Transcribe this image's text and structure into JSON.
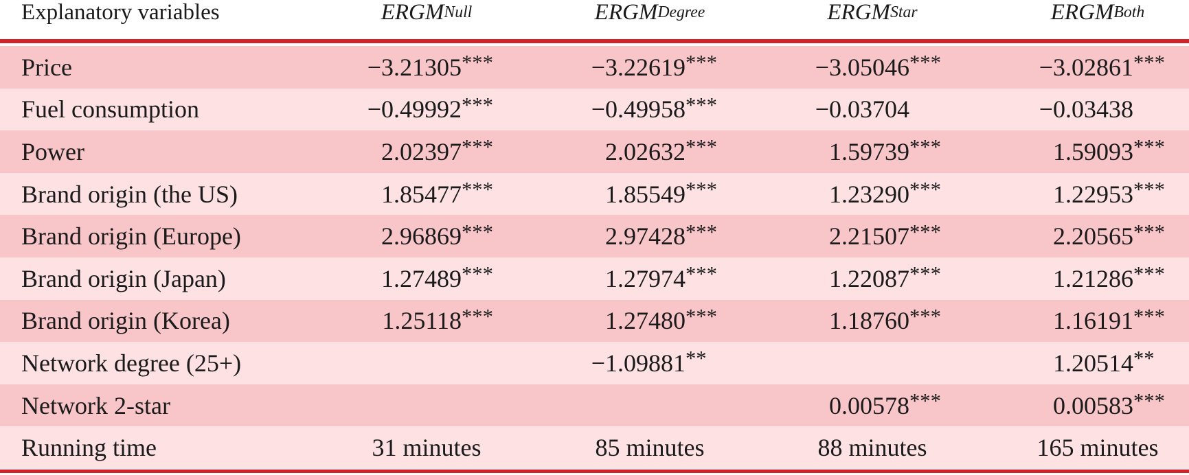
{
  "table": {
    "header": [
      "Explanatory variables",
      {
        "main": "ERGM",
        "sub": "Null"
      },
      {
        "main": "ERGM",
        "sub": "Degree"
      },
      {
        "main": "ERGM",
        "sub": "Star"
      },
      {
        "main": "ERGM",
        "sub": "Both"
      }
    ],
    "rows": [
      [
        "Price",
        {
          "value": "−3.21305",
          "stars": "***"
        },
        {
          "value": "−3.22619",
          "stars": "***"
        },
        {
          "value": "−3.05046",
          "stars": "***"
        },
        {
          "value": "−3.02861",
          "stars": "***"
        }
      ],
      [
        "Fuel consumption",
        {
          "value": "−0.49992",
          "stars": "***"
        },
        {
          "value": "−0.49958",
          "stars": "***"
        },
        {
          "value": "−0.03704"
        },
        {
          "value": "−0.03438"
        }
      ],
      [
        "Power",
        {
          "value": "2.02397",
          "stars": "***"
        },
        {
          "value": "2.02632",
          "stars": "***"
        },
        {
          "value": "1.59739",
          "stars": "***"
        },
        {
          "value": "1.59093",
          "stars": "***"
        }
      ],
      [
        "Brand origin (the US)",
        {
          "value": "1.85477",
          "stars": "***"
        },
        {
          "value": "1.85549",
          "stars": "***"
        },
        {
          "value": "1.23290",
          "stars": "***"
        },
        {
          "value": "1.22953",
          "stars": "***"
        }
      ],
      [
        "Brand origin (Europe)",
        {
          "value": "2.96869",
          "stars": "***"
        },
        {
          "value": "2.97428",
          "stars": "***"
        },
        {
          "value": "2.21507",
          "stars": "***"
        },
        {
          "value": "2.20565",
          "stars": "***"
        }
      ],
      [
        "Brand origin (Japan)",
        {
          "value": "1.27489",
          "stars": "***"
        },
        {
          "value": "1.27974",
          "stars": "***"
        },
        {
          "value": "1.22087",
          "stars": "***"
        },
        {
          "value": "1.21286",
          "stars": "***"
        }
      ],
      [
        "Brand origin (Korea)",
        {
          "value": "1.25118",
          "stars": "***"
        },
        {
          "value": "1.27480",
          "stars": "***"
        },
        {
          "value": "1.18760",
          "stars": "***"
        },
        {
          "value": "1.16191",
          "stars": "***"
        }
      ],
      [
        "Network degree (25+)",
        null,
        {
          "value": "−1.09881",
          "stars": "**"
        },
        null,
        {
          "value": "1.20514",
          "stars": "**"
        }
      ],
      [
        "Network 2-star",
        null,
        null,
        {
          "value": "0.00578",
          "stars": "***"
        },
        {
          "value": "0.00583",
          "stars": "***"
        }
      ],
      [
        "Running time",
        "31 minutes",
        "85 minutes",
        "88 minutes",
        "165 minutes"
      ]
    ]
  }
}
